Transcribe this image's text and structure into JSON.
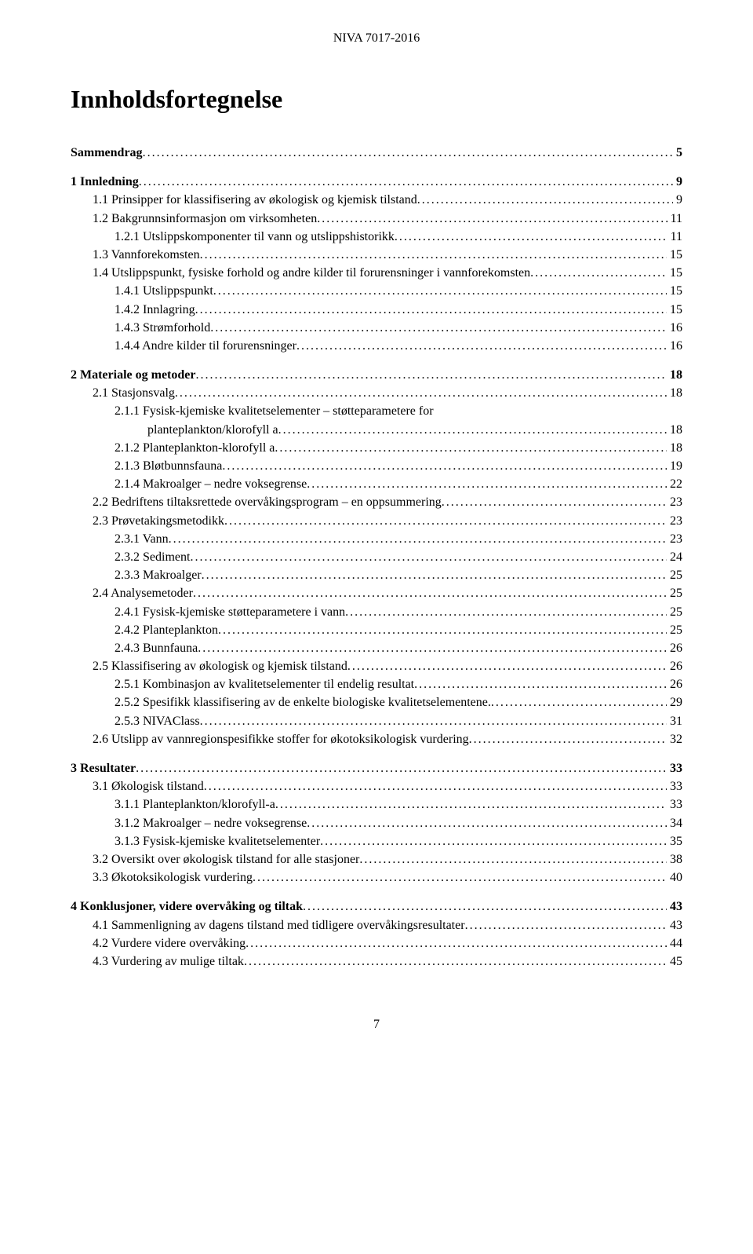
{
  "header": "NIVA 7017-2016",
  "title": "Innholdsfortegnelse",
  "footer": "7",
  "toc": [
    {
      "label": "Sammendrag",
      "page": "5",
      "indent": 0,
      "bold": true
    },
    {
      "spacer": true
    },
    {
      "label": "1 Innledning",
      "page": "9",
      "indent": 0,
      "bold": true
    },
    {
      "label": "1.1 Prinsipper for klassifisering av økologisk og kjemisk tilstand",
      "page": "9",
      "indent": 1
    },
    {
      "label": "1.2 Bakgrunnsinformasjon om virksomheten",
      "page": "11",
      "indent": 1
    },
    {
      "label": "1.2.1 Utslippskomponenter til vann og utslippshistorikk",
      "page": "11",
      "indent": 2
    },
    {
      "label": "1.3 Vannforekomsten",
      "page": "15",
      "indent": 1
    },
    {
      "label": "1.4 Utslippspunkt, fysiske forhold og andre kilder til forurensninger i vannforekomsten",
      "page": "15",
      "indent": 1
    },
    {
      "label": "1.4.1 Utslippspunkt",
      "page": "15",
      "indent": 2
    },
    {
      "label": "1.4.2 Innlagring",
      "page": "15",
      "indent": 2
    },
    {
      "label": "1.4.3 Strømforhold",
      "page": "16",
      "indent": 2
    },
    {
      "label": "1.4.4 Andre kilder til forurensninger",
      "page": "16",
      "indent": 2
    },
    {
      "spacer": true
    },
    {
      "label": "2 Materiale og metoder",
      "page": "18",
      "indent": 0,
      "bold": true
    },
    {
      "label": "2.1 Stasjonsvalg",
      "page": "18",
      "indent": 1
    },
    {
      "label": "2.1.1 Fysisk-kjemiske kvalitetselementer – støtteparametere for",
      "indent": 2,
      "nopagenum": true
    },
    {
      "label": "planteplankton/klorofyll a",
      "page": "18",
      "continuation": true
    },
    {
      "label": "2.1.2 Planteplankton-klorofyll a",
      "page": "18",
      "indent": 2
    },
    {
      "label": "2.1.3 Bløtbunnsfauna",
      "page": "19",
      "indent": 2
    },
    {
      "label": "2.1.4 Makroalger – nedre voksegrense",
      "page": "22",
      "indent": 2
    },
    {
      "label": "2.2 Bedriftens tiltaksrettede overvåkingsprogram – en oppsummering",
      "page": "23",
      "indent": 1
    },
    {
      "label": "2.3 Prøvetakingsmetodikk",
      "page": "23",
      "indent": 1
    },
    {
      "label": "2.3.1 Vann",
      "page": "23",
      "indent": 2
    },
    {
      "label": "2.3.2 Sediment",
      "page": "24",
      "indent": 2
    },
    {
      "label": "2.3.3 Makroalger",
      "page": "25",
      "indent": 2
    },
    {
      "label": "2.4 Analysemetoder",
      "page": "25",
      "indent": 1
    },
    {
      "label": "2.4.1 Fysisk-kjemiske støtteparametere i vann",
      "page": "25",
      "indent": 2
    },
    {
      "label": "2.4.2 Planteplankton",
      "page": "25",
      "indent": 2
    },
    {
      "label": "2.4.3 Bunnfauna",
      "page": "26",
      "indent": 2
    },
    {
      "label": "2.5 Klassifisering av økologisk og kjemisk tilstand",
      "page": "26",
      "indent": 1
    },
    {
      "label": "2.5.1 Kombinasjon av kvalitetselementer til endelig resultat",
      "page": "26",
      "indent": 2
    },
    {
      "label": "2.5.2 Spesifikk klassifisering av de enkelte biologiske kvalitetselementene.",
      "page": "29",
      "indent": 2
    },
    {
      "label": "2.5.3 NIVAClass",
      "page": "31",
      "indent": 2
    },
    {
      "label": "2.6 Utslipp av vannregionspesifikke stoffer for økotoksikologisk vurdering",
      "page": "32",
      "indent": 1
    },
    {
      "spacer": true
    },
    {
      "label": "3 Resultater",
      "page": "33",
      "indent": 0,
      "bold": true
    },
    {
      "label": "3.1 Økologisk tilstand",
      "page": "33",
      "indent": 1
    },
    {
      "label": "3.1.1 Planteplankton/klorofyll-a",
      "page": "33",
      "indent": 2
    },
    {
      "label": "3.1.2 Makroalger – nedre voksegrense",
      "page": "34",
      "indent": 2
    },
    {
      "label": "3.1.3 Fysisk-kjemiske kvalitetselementer",
      "page": "35",
      "indent": 2
    },
    {
      "label": "3.2 Oversikt over økologisk tilstand for alle stasjoner",
      "page": "38",
      "indent": 1
    },
    {
      "label": "3.3 Økotoksikologisk vurdering",
      "page": "40",
      "indent": 1
    },
    {
      "spacer": true
    },
    {
      "label": "4 Konklusjoner, videre overvåking og tiltak",
      "page": "43",
      "indent": 0,
      "bold": true
    },
    {
      "label": "4.1 Sammenligning av dagens tilstand med tidligere overvåkingsresultater",
      "page": "43",
      "indent": 1
    },
    {
      "label": "4.2 Vurdere videre overvåking",
      "page": "44",
      "indent": 1
    },
    {
      "label": "4.3 Vurdering av mulige tiltak",
      "page": "45",
      "indent": 1
    }
  ]
}
